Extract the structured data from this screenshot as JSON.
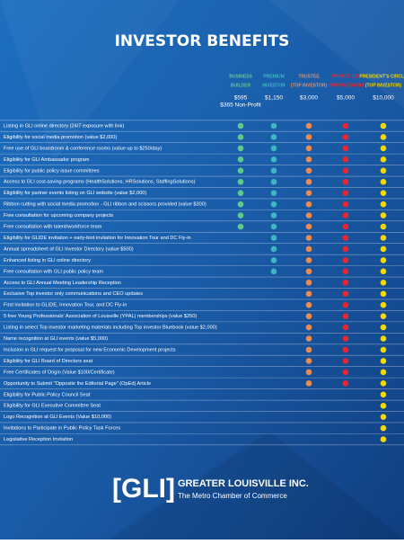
{
  "header": {
    "title": "INVESTOR BENEFITS"
  },
  "tiers": [
    {
      "label_lines": [
        "BUSINESS",
        "BUILDER"
      ],
      "price": "$595",
      "note": "$365 Non-Profit",
      "color": "#5fc98c"
    },
    {
      "label_lines": [
        "PREMIUM",
        "INVESTOR"
      ],
      "price": "$1,150",
      "color": "#3fb7c2"
    },
    {
      "label_lines": [
        "TRUSTEE",
        "(TOP INVESTOR)"
      ],
      "price": "$3,000",
      "color": "#f08a4b"
    },
    {
      "label_lines": [
        "PRIVATE 100",
        "(TOP INVESTOR)"
      ],
      "price": "$5,000",
      "color": "#e8262e"
    },
    {
      "label_lines": [
        "PRESIDENT'S CIRCLE",
        "(TOP INVESTOR)"
      ],
      "price": "$10,000",
      "color": "#f5d800"
    }
  ],
  "rows": [
    {
      "benefit": "Listing in GLI online directory (24/7 exposure with link)",
      "included": [
        true,
        true,
        true,
        true,
        true
      ]
    },
    {
      "benefit": "Eligibility for social media promotion (value $2,000)",
      "included": [
        true,
        true,
        true,
        true,
        true
      ]
    },
    {
      "benefit": "Free use of GLI boardroom & conference rooms (value up to $250/day)",
      "included": [
        true,
        true,
        true,
        true,
        true
      ]
    },
    {
      "benefit": "Eligibility for GLI Ambassador program",
      "included": [
        true,
        true,
        true,
        true,
        true
      ]
    },
    {
      "benefit": "Eligibility for public policy issue committees",
      "included": [
        true,
        true,
        true,
        true,
        true
      ]
    },
    {
      "benefit": "Access to GLI cost-saving programs (HealthSolutions, HRSolutions, StaffingSolutions)",
      "included": [
        true,
        true,
        true,
        true,
        true
      ]
    },
    {
      "benefit": "Eligibility for partner events listing on GLI website (value $2,000)",
      "included": [
        true,
        true,
        true,
        true,
        true
      ]
    },
    {
      "benefit": "Ribbon cutting with social media promotion - GLI ribbon and scissors provided (value $300)",
      "included": [
        true,
        true,
        true,
        true,
        true
      ]
    },
    {
      "benefit": "Free consultation for upcoming company projects",
      "included": [
        true,
        true,
        true,
        true,
        true
      ]
    },
    {
      "benefit": "Free consultation with talent/workforce team",
      "included": [
        true,
        true,
        true,
        true,
        true
      ]
    },
    {
      "benefit": "Eligibility for GLIDE invitation + early-bird invitation for Innovation Tour and DC Fly-in",
      "included": [
        false,
        true,
        true,
        true,
        true
      ]
    },
    {
      "benefit": "Annual spreadsheet of GLI Investor Directory (value $500)",
      "included": [
        false,
        true,
        true,
        true,
        true
      ]
    },
    {
      "benefit": "Enhanced listing in GLI online directory",
      "included": [
        false,
        true,
        true,
        true,
        true
      ]
    },
    {
      "benefit": "Free consultation with GLI public policy team",
      "included": [
        false,
        true,
        true,
        true,
        true
      ]
    },
    {
      "benefit": "Access to GLI Annual Meeting Leadership Reception",
      "included": [
        false,
        false,
        true,
        true,
        true
      ]
    },
    {
      "benefit": "Exclusive Top investor only communications and CEO updates",
      "included": [
        false,
        false,
        true,
        true,
        true
      ]
    },
    {
      "benefit": "First invitation to GLIDE, Innovation Tour, and DC Fly-in",
      "included": [
        false,
        false,
        true,
        true,
        true
      ]
    },
    {
      "benefit": "5 free Young Professionals' Association of Louisville (YPAL) memberships (value $250)",
      "included": [
        false,
        false,
        true,
        true,
        true
      ]
    },
    {
      "benefit": "Listing in select Top investor marketing materials including Top investor Bluebook (value $2,000)",
      "included": [
        false,
        false,
        true,
        true,
        true
      ]
    },
    {
      "benefit": "Name recognition at GLI events (value $5,000)",
      "included": [
        false,
        false,
        true,
        true,
        true
      ]
    },
    {
      "benefit": "Inclusion in GLI request for proposal for new Economic Development projects",
      "included": [
        false,
        false,
        true,
        true,
        true
      ]
    },
    {
      "benefit": "Eligibility for GLI Board of Directors seat",
      "included": [
        false,
        false,
        true,
        true,
        true
      ]
    },
    {
      "benefit": "Free Certificates of Origin (Value $100/Certificate)",
      "included": [
        false,
        false,
        true,
        true,
        true
      ]
    },
    {
      "benefit": "Opportunity to Submit \"Opposite the Editorial Page\" (OpEd) Article",
      "included": [
        false,
        false,
        true,
        true,
        true
      ]
    },
    {
      "benefit": "Eligibility for Public Policy Council Seat",
      "included": [
        false,
        false,
        false,
        false,
        true
      ]
    },
    {
      "benefit": "Eligibility for GLI Executive Committee Seat",
      "included": [
        false,
        false,
        false,
        false,
        true
      ]
    },
    {
      "benefit": "Logo Recognition at GLI Events (Value $10,000)",
      "included": [
        false,
        false,
        false,
        false,
        true
      ]
    },
    {
      "benefit": "Invitations to Participate in Public Policy Task Forces",
      "included": [
        false,
        false,
        false,
        false,
        true
      ]
    },
    {
      "benefit": "Legislative Reception Invitation",
      "included": [
        false,
        false,
        false,
        false,
        true
      ]
    }
  ],
  "footer": {
    "logo": "[GLI]",
    "name": "GREATER LOUISVILLE INC.",
    "tagline": "The Metro Chamber of Commerce"
  }
}
